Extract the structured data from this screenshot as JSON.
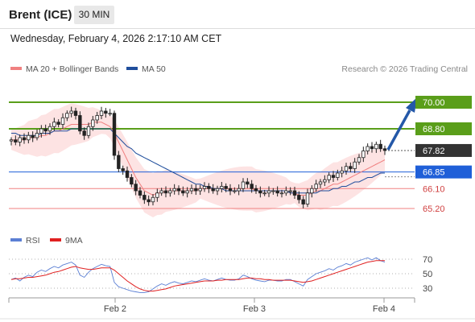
{
  "header": {
    "title": "Brent (ICE)",
    "timeframe": "30 MIN"
  },
  "datetime": "Wednesday, February 4, 2026 2:17:10 AM CET",
  "legend": {
    "ma20": {
      "label": "MA 20 + Bollinger Bands",
      "color": "#f08080"
    },
    "ma50": {
      "label": "MA 50",
      "color": "#1f4e9c"
    }
  },
  "credit": "Research © 2026 Trading Central",
  "rsi_legend": {
    "rsi": {
      "label": "RSI",
      "color": "#5b7fd4"
    },
    "ma9": {
      "label": "9MA",
      "color": "#e02020"
    }
  },
  "chart_data": [
    {
      "type": "candlestick",
      "x_tick_labels": [
        "Feb 2",
        "Feb 3",
        "Feb 4"
      ],
      "ylim": [
        64.7,
        70.4
      ],
      "price_levels": [
        {
          "value": 70.0,
          "label": "70.00",
          "kind": "resistance",
          "color": "#5a9e1a"
        },
        {
          "value": 68.8,
          "label": "68.80",
          "kind": "resistance",
          "color": "#5a9e1a"
        },
        {
          "value": 67.82,
          "label": "67.82",
          "kind": "last",
          "color": "#333333"
        },
        {
          "value": 66.85,
          "label": "66.85",
          "kind": "pivot",
          "color": "#1f5fd8"
        },
        {
          "value": 66.1,
          "label": "66.10",
          "kind": "support",
          "color": "#f08080"
        },
        {
          "value": 65.2,
          "label": "65.20",
          "kind": "support",
          "color": "#f08080"
        }
      ],
      "close_series": [
        68.3,
        68.2,
        68.4,
        68.3,
        68.5,
        68.4,
        68.6,
        68.8,
        68.7,
        68.9,
        69.1,
        69.0,
        69.3,
        69.5,
        69.6,
        69.4,
        68.7,
        68.5,
        68.9,
        69.2,
        69.4,
        69.6,
        69.5,
        69.5,
        67.6,
        67.0,
        66.9,
        66.6,
        66.3,
        66.0,
        65.8,
        65.6,
        65.5,
        65.7,
        65.9,
        66.0,
        65.9,
        66.0,
        66.1,
        66.0,
        65.9,
        66.0,
        66.1,
        66.0,
        66.1,
        66.2,
        66.1,
        66.0,
        66.1,
        66.2,
        66.1,
        66.0,
        66.0,
        66.1,
        66.4,
        66.3,
        66.1,
        66.0,
        65.9,
        65.9,
        66.0,
        66.0,
        65.9,
        65.9,
        66.0,
        66.0,
        65.8,
        65.6,
        65.4,
        65.9,
        66.1,
        66.3,
        66.4,
        66.5,
        66.7,
        66.6,
        66.8,
        66.9,
        67.1,
        67.0,
        67.3,
        67.5,
        67.8,
        68.0,
        67.9,
        68.1,
        67.9,
        67.82
      ],
      "ma20_series": [
        68.3,
        68.3,
        68.3,
        68.3,
        68.4,
        68.4,
        68.4,
        68.5,
        68.5,
        68.6,
        68.7,
        68.7,
        68.8,
        68.9,
        69.0,
        69.0,
        69.0,
        69.0,
        69.0,
        69.1,
        69.1,
        69.1,
        69.0,
        68.9,
        68.6,
        68.2,
        67.8,
        67.4,
        67.0,
        66.6,
        66.3,
        66.0,
        65.9,
        65.8,
        65.9,
        65.9,
        66.0,
        66.0,
        66.0,
        66.0,
        66.0,
        66.0,
        66.0,
        66.0,
        66.1,
        66.1,
        66.1,
        66.1,
        66.1,
        66.1,
        66.1,
        66.1,
        66.1,
        66.1,
        66.1,
        66.1,
        66.1,
        66.0,
        66.0,
        66.0,
        66.0,
        66.0,
        66.0,
        66.0,
        66.0,
        65.9,
        65.9,
        65.8,
        65.8,
        65.8,
        65.9,
        66.0,
        66.0,
        66.1,
        66.2,
        66.3,
        66.3,
        66.4,
        66.5,
        66.6,
        66.7,
        66.8,
        66.9,
        67.0,
        67.1,
        67.2,
        67.3,
        67.4
      ],
      "ma50_series": [
        68.6,
        68.6,
        68.5,
        68.5,
        68.5,
        68.5,
        68.5,
        68.6,
        68.6,
        68.6,
        68.7,
        68.7,
        68.7,
        68.7,
        68.8,
        68.8,
        68.8,
        68.8,
        68.8,
        68.8,
        68.8,
        68.8,
        68.8,
        68.8,
        68.6,
        68.4,
        68.2,
        68.0,
        67.9,
        67.7,
        67.6,
        67.5,
        67.4,
        67.3,
        67.2,
        67.1,
        67.0,
        66.9,
        66.8,
        66.7,
        66.6,
        66.5,
        66.4,
        66.3,
        66.3,
        66.2,
        66.2,
        66.1,
        66.1,
        66.1,
        66.0,
        66.0,
        66.0,
        66.0,
        66.0,
        66.0,
        66.0,
        66.0,
        66.0,
        66.0,
        66.0,
        66.0,
        66.0,
        66.0,
        66.0,
        65.9,
        65.9,
        65.9,
        65.9,
        65.9,
        65.9,
        65.9,
        66.0,
        66.0,
        66.0,
        66.1,
        66.1,
        66.2,
        66.2,
        66.3,
        66.4,
        66.4,
        66.5,
        66.6,
        66.6,
        66.7,
        66.8,
        66.8
      ]
    },
    {
      "type": "line",
      "ylim": [
        20,
        80
      ],
      "y_tick_labels": [
        "70",
        "50",
        "30"
      ],
      "y_tick_values": [
        70,
        50,
        30
      ],
      "rsi_series": [
        42,
        44,
        40,
        45,
        48,
        46,
        52,
        55,
        53,
        57,
        60,
        58,
        62,
        64,
        66,
        62,
        48,
        45,
        52,
        57,
        60,
        63,
        61,
        60,
        38,
        32,
        30,
        28,
        26,
        25,
        24,
        24,
        25,
        29,
        33,
        36,
        34,
        37,
        39,
        37,
        36,
        38,
        40,
        39,
        41,
        43,
        41,
        40,
        42,
        44,
        42,
        41,
        41,
        43,
        48,
        46,
        43,
        41,
        40,
        39,
        41,
        41,
        40,
        40,
        42,
        42,
        39,
        36,
        33,
        42,
        46,
        50,
        52,
        54,
        57,
        55,
        59,
        61,
        64,
        62,
        66,
        68,
        70,
        72,
        69,
        72,
        68,
        66
      ],
      "ma9_series": [
        42,
        43,
        43,
        44,
        45,
        45,
        46,
        47,
        48,
        50,
        52,
        53,
        55,
        57,
        59,
        60,
        58,
        57,
        56,
        56,
        57,
        58,
        58,
        58,
        55,
        50,
        45,
        40,
        36,
        32,
        29,
        27,
        26,
        26,
        27,
        28,
        29,
        31,
        33,
        34,
        35,
        36,
        37,
        38,
        39,
        40,
        40,
        40,
        41,
        41,
        42,
        42,
        42,
        42,
        43,
        44,
        44,
        43,
        43,
        42,
        42,
        41,
        41,
        41,
        41,
        41,
        40,
        39,
        38,
        39,
        40,
        42,
        44,
        46,
        48,
        50,
        52,
        54,
        56,
        58,
        60,
        62,
        64,
        66,
        67,
        68,
        68,
        68
      ]
    }
  ]
}
